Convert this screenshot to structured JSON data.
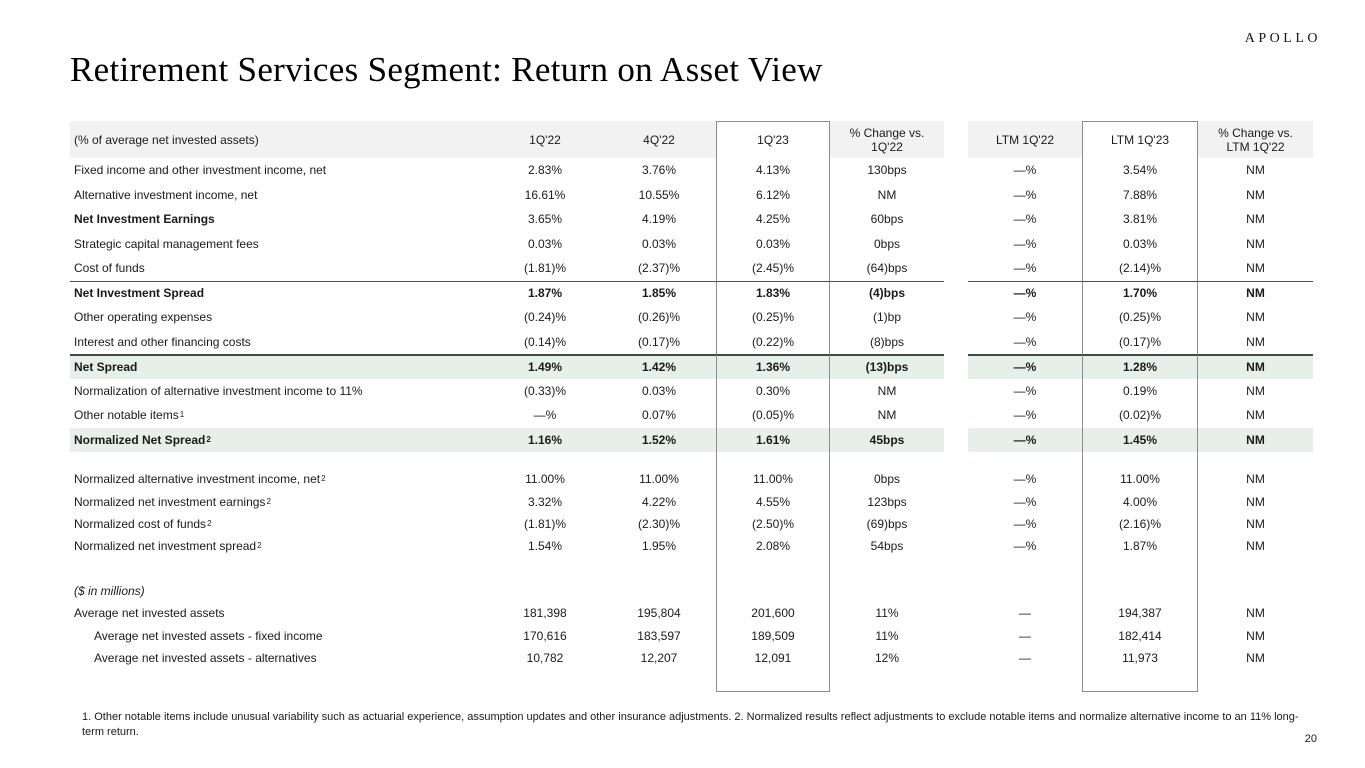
{
  "brand": "APOLLO",
  "page_title": "Retirement Services Segment: Return on Asset View",
  "page_number": "20",
  "footnote": "1. Other notable items include unusual variability such as actuarial experience, assumption updates and other insurance adjustments. 2. Normalized results reflect adjustments to exclude notable items and normalize alternative income to an 11% long-term return.",
  "colors": {
    "highlight_row_bg": "#e7efe9",
    "highlight_rule": "#3c4c42",
    "header_bg": "#f2f2f2",
    "box_border": "#8c8c8c"
  },
  "table": {
    "columns": [
      "(% of average net invested assets)",
      "1Q'22",
      "4Q'22",
      "1Q'23",
      "% Change vs.\n1Q'22",
      "LTM 1Q'22",
      "LTM 1Q'23",
      "% Change vs.\nLTM 1Q'22"
    ],
    "rows": [
      {
        "label": "Fixed income and other investment income, net",
        "values": [
          "2.83%",
          "3.76%",
          "4.13%",
          "130bps",
          "—%",
          "3.54%",
          "NM"
        ]
      },
      {
        "label": "Alternative investment income, net",
        "values": [
          "16.61%",
          "10.55%",
          "6.12%",
          "NM",
          "—%",
          "7.88%",
          "NM"
        ]
      },
      {
        "label": "Net Investment Earnings",
        "bold_label": true,
        "values": [
          "3.65%",
          "4.19%",
          "4.25%",
          "60bps",
          "—%",
          "3.81%",
          "NM"
        ]
      },
      {
        "label": "Strategic capital management fees",
        "values": [
          "0.03%",
          "0.03%",
          "0.03%",
          "0bps",
          "—%",
          "0.03%",
          "NM"
        ]
      },
      {
        "label": "Cost of funds",
        "values": [
          "(1.81)%",
          "(2.37)%",
          "(2.45)%",
          "(64)bps",
          "—%",
          "(2.14)%",
          "NM"
        ]
      },
      {
        "label": "Net Investment Spread",
        "bold": true,
        "rule": "thin",
        "values": [
          "1.87%",
          "1.85%",
          "1.83%",
          "(4)bps",
          "—%",
          "1.70%",
          "NM"
        ]
      },
      {
        "label": "Other operating expenses",
        "values": [
          "(0.24)%",
          "(0.26)%",
          "(0.25)%",
          "(1)bp",
          "—%",
          "(0.25)%",
          "NM"
        ]
      },
      {
        "label": "Interest and other financing costs",
        "values": [
          "(0.14)%",
          "(0.17)%",
          "(0.22)%",
          "(8)bps",
          "—%",
          "(0.17)%",
          "NM"
        ]
      },
      {
        "label": "Net Spread",
        "bold": true,
        "highlight": true,
        "rule": "dark",
        "values": [
          "1.49%",
          "1.42%",
          "1.36%",
          "(13)bps",
          "—%",
          "1.28%",
          "NM"
        ]
      },
      {
        "label": "Normalization of alternative investment income to 11%",
        "values": [
          "(0.33)%",
          "0.03%",
          "0.30%",
          "NM",
          "—%",
          "0.19%",
          "NM"
        ]
      },
      {
        "label": "Other notable items",
        "sup": "1",
        "values": [
          "—%",
          "0.07%",
          "(0.05)%",
          "NM",
          "—%",
          "(0.02)%",
          "NM"
        ]
      },
      {
        "label": "Normalized Net Spread",
        "sup": "2",
        "bold": true,
        "highlight": true,
        "values": [
          "1.16%",
          "1.52%",
          "1.61%",
          "45bps",
          "—%",
          "1.45%",
          "NM"
        ]
      },
      {
        "spacer": true,
        "size": "sp16"
      },
      {
        "label": "Normalized alternative investment income, net",
        "sup": "2",
        "size": "b",
        "values": [
          "11.00%",
          "11.00%",
          "11.00%",
          "0bps",
          "—%",
          "11.00%",
          "NM"
        ]
      },
      {
        "label": "Normalized net investment earnings",
        "sup": "2",
        "size": "b",
        "values": [
          "3.32%",
          "4.22%",
          "4.55%",
          "123bps",
          "—%",
          "4.00%",
          "NM"
        ]
      },
      {
        "label": "Normalized cost of funds",
        "sup": "2",
        "size": "b",
        "values": [
          "(1.81)%",
          "(2.30)%",
          "(2.50)%",
          "(69)bps",
          "—%",
          "(2.16)%",
          "NM"
        ]
      },
      {
        "label": "Normalized net investment spread",
        "sup": "2",
        "size": "b",
        "values": [
          "1.54%",
          "1.95%",
          "2.08%",
          "54bps",
          "—%",
          "1.87%",
          "NM"
        ]
      },
      {
        "spacer": true,
        "size": "sp22"
      },
      {
        "label": "($ in millions)",
        "italic": true,
        "size": "b",
        "values": [
          "",
          "",
          "",
          "",
          "",
          "",
          ""
        ]
      },
      {
        "label": "Average net invested assets",
        "size": "b",
        "values": [
          "181,398",
          "195,804",
          "201,600",
          "11%",
          "—",
          "194,387",
          "NM"
        ]
      },
      {
        "label": "Average net invested assets - fixed income",
        "indent": true,
        "size": "b",
        "values": [
          "170,616",
          "183,597",
          "189,509",
          "11%",
          "—",
          "182,414",
          "NM"
        ]
      },
      {
        "label": "Average net invested assets - alternatives",
        "indent": true,
        "size": "b",
        "values": [
          "10,782",
          "12,207",
          "12,091",
          "12%",
          "—",
          "11,973",
          "NM"
        ]
      },
      {
        "spacer": true,
        "size": "bottom",
        "last": true
      }
    ]
  }
}
